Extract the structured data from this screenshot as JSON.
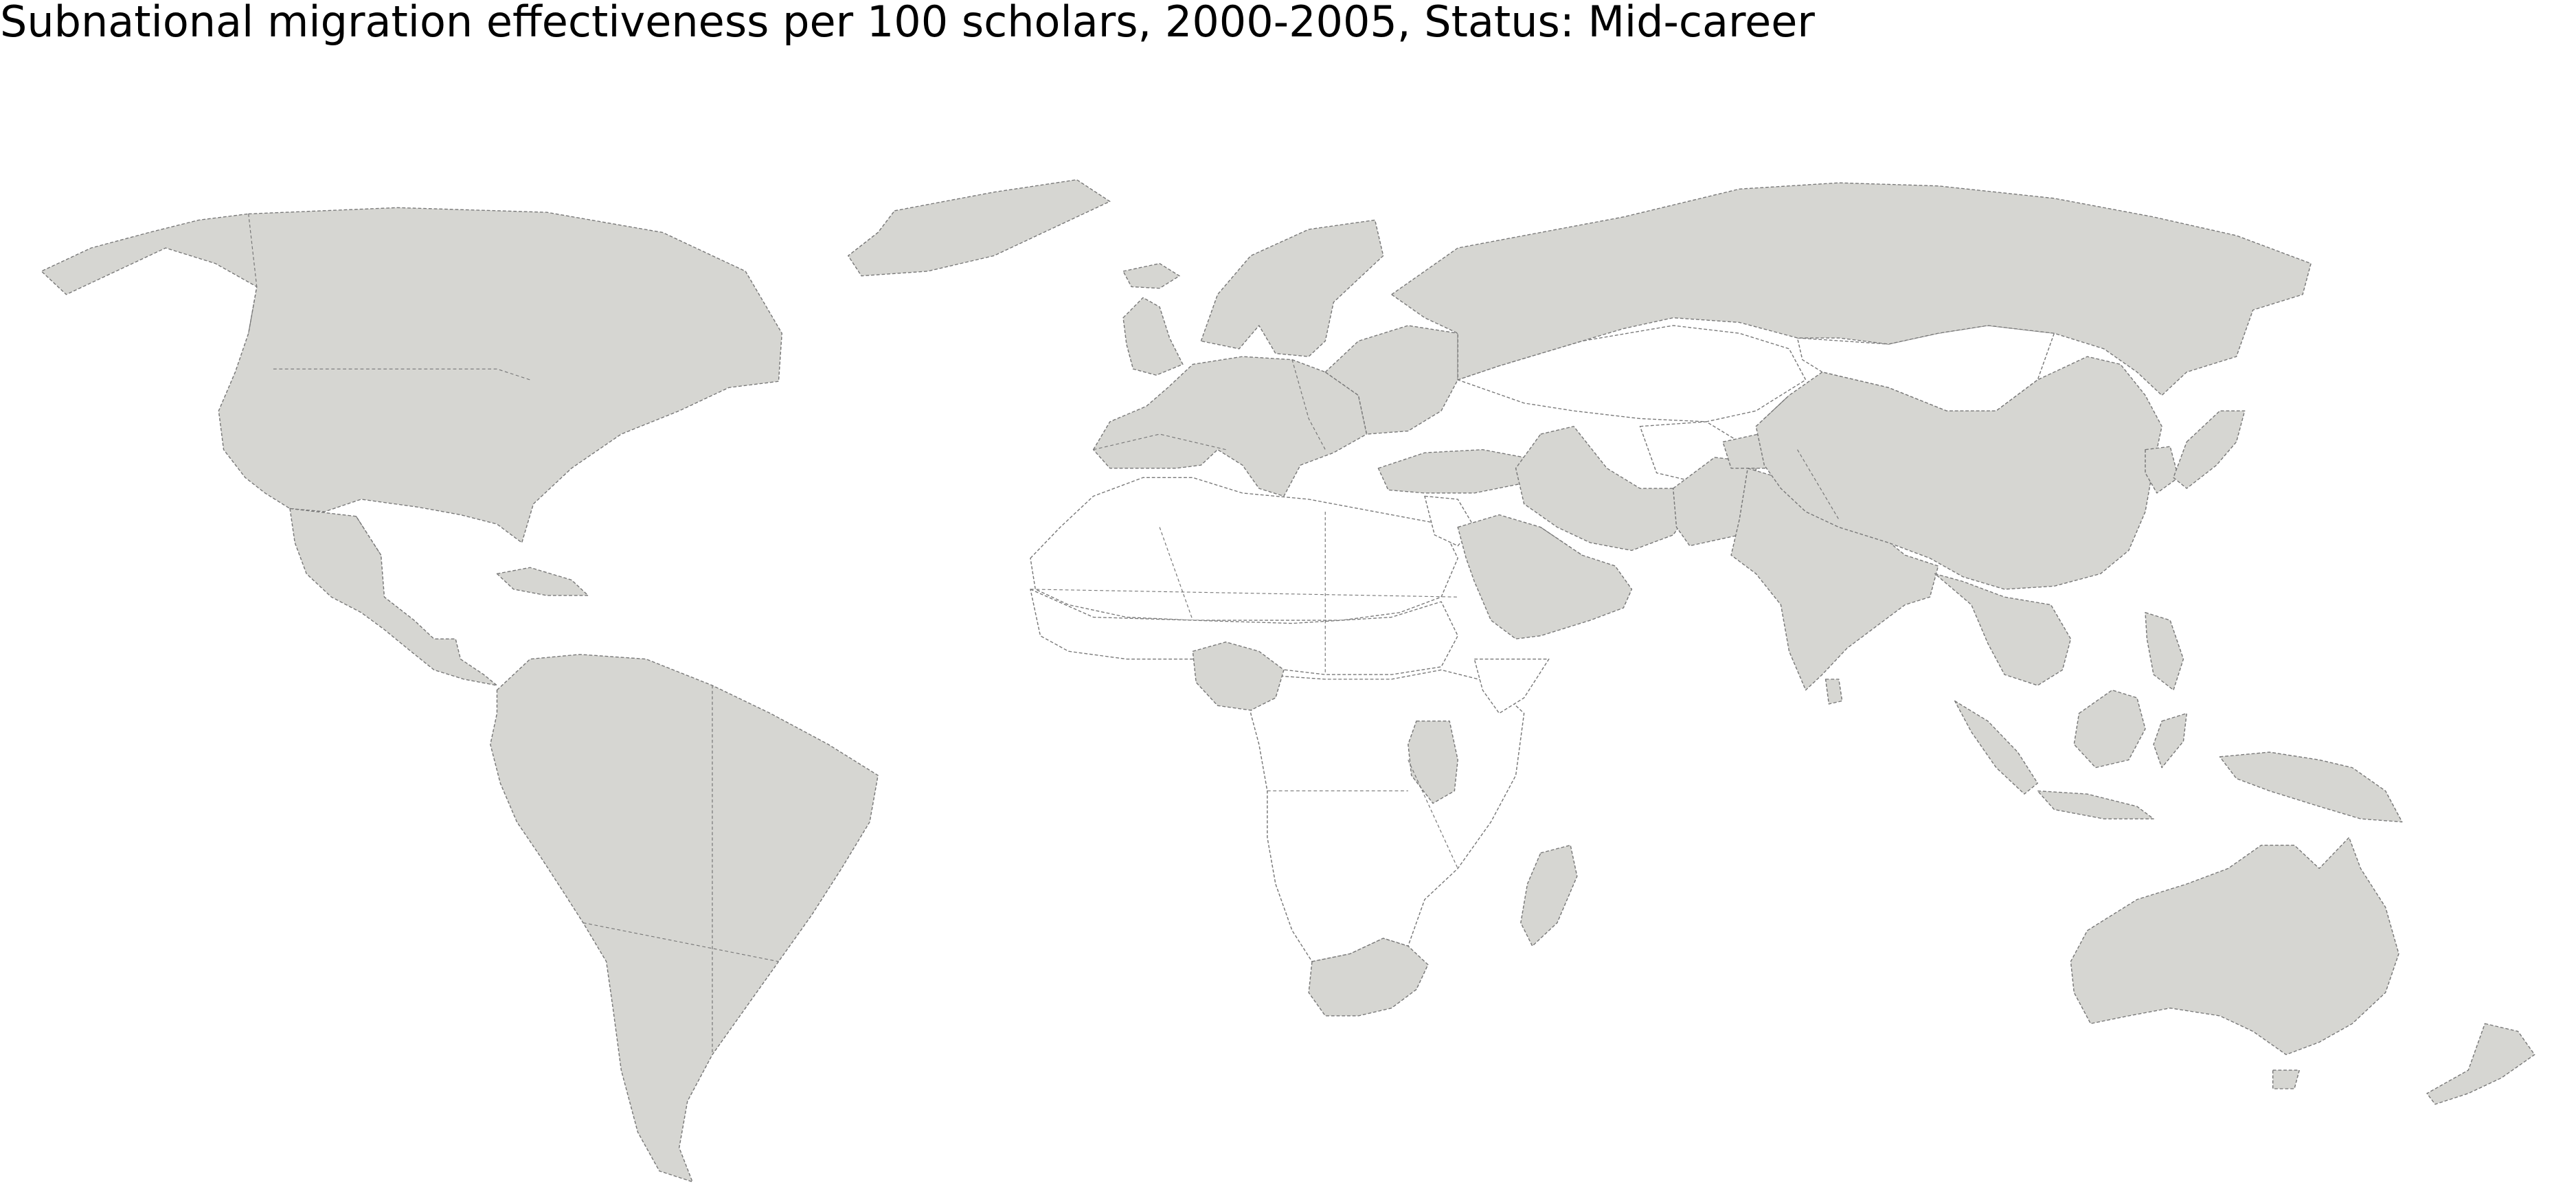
{
  "title": "Subnational migration effectiveness per 100 scholars, 2000-2005, Status: Mid-career",
  "colors": {
    "background": "#ffffff",
    "data_fill": "#d6d6d2",
    "no_data_fill": "#ffffff",
    "border": "#777777"
  },
  "map": {
    "projection": "equirectangular-like world",
    "shaded_regions": [
      "north-america",
      "greenland",
      "central-america",
      "caribbean",
      "south-america",
      "western-europe",
      "scandinavia",
      "iceland",
      "british-isles",
      "eastern-europe",
      "russia",
      "anatolia",
      "iran",
      "arabian-peninsula",
      "pakistan",
      "india",
      "sri-lanka",
      "central-asia-east",
      "china",
      "korea",
      "japan",
      "southeast-asia",
      "philippines",
      "sumatra",
      "java",
      "borneo",
      "sulawesi",
      "new-guinea",
      "australia",
      "tasmania",
      "new-zealand",
      "madagascar",
      "southern-africa",
      "east-africa",
      "west-africa"
    ],
    "unshaded_regions": [
      "north-africa",
      "sahel",
      "central-africa",
      "horn-of-africa",
      "mongolia",
      "kazakhstan",
      "afghanistan",
      "levant"
    ]
  }
}
